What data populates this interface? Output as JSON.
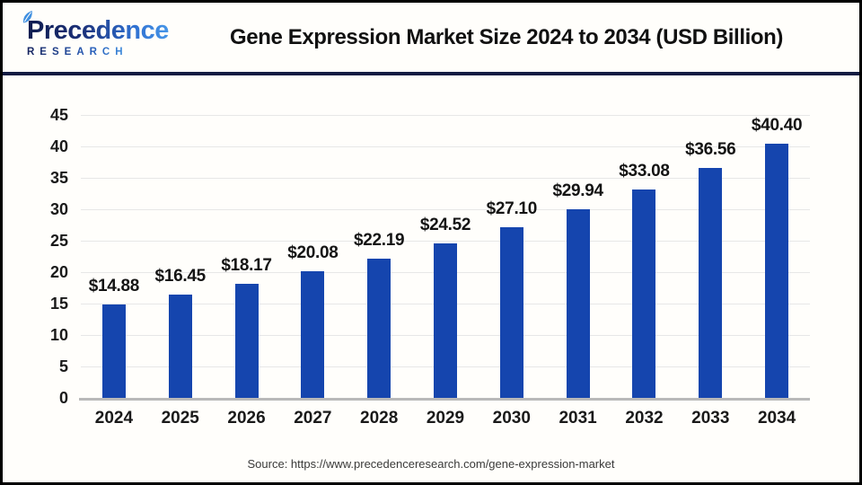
{
  "header": {
    "logo": {
      "brand": "Precedence",
      "sub": "RESEARCH"
    },
    "title": "Gene Expression Market Size 2024 to 2034 (USD Billion)"
  },
  "chart_data": {
    "type": "bar",
    "title": "Gene Expression Market Size 2024 to 2034 (USD Billion)",
    "unit": "USD Billion",
    "categories": [
      "2024",
      "2025",
      "2026",
      "2027",
      "2028",
      "2029",
      "2030",
      "2031",
      "2032",
      "2033",
      "2034"
    ],
    "values": [
      14.88,
      16.45,
      18.17,
      20.08,
      22.19,
      24.52,
      27.1,
      29.94,
      33.08,
      36.56,
      40.4
    ],
    "value_labels": [
      "$14.88",
      "$16.45",
      "$18.17",
      "$20.08",
      "$22.19",
      "$24.52",
      "$27.10",
      "$29.94",
      "$33.08",
      "$36.56",
      "$40.40"
    ],
    "ylim": [
      0,
      45
    ],
    "ytick_step": 5,
    "yticks": [
      0,
      5,
      10,
      15,
      20,
      25,
      30,
      35,
      40,
      45
    ],
    "grid": true,
    "legend": "none",
    "bar_color": "#1545AE"
  },
  "footer": {
    "source": "Source: https://www.precedenceresearch.com/gene-expression-market"
  },
  "colors": {
    "bar": "#1545AE",
    "divider": "#131c42",
    "gridline": "#e7e7e7",
    "axis": "#b9b9b9",
    "logo_navy": "#16235e",
    "logo_blue": "#3f8fe0",
    "border": "#000000"
  }
}
